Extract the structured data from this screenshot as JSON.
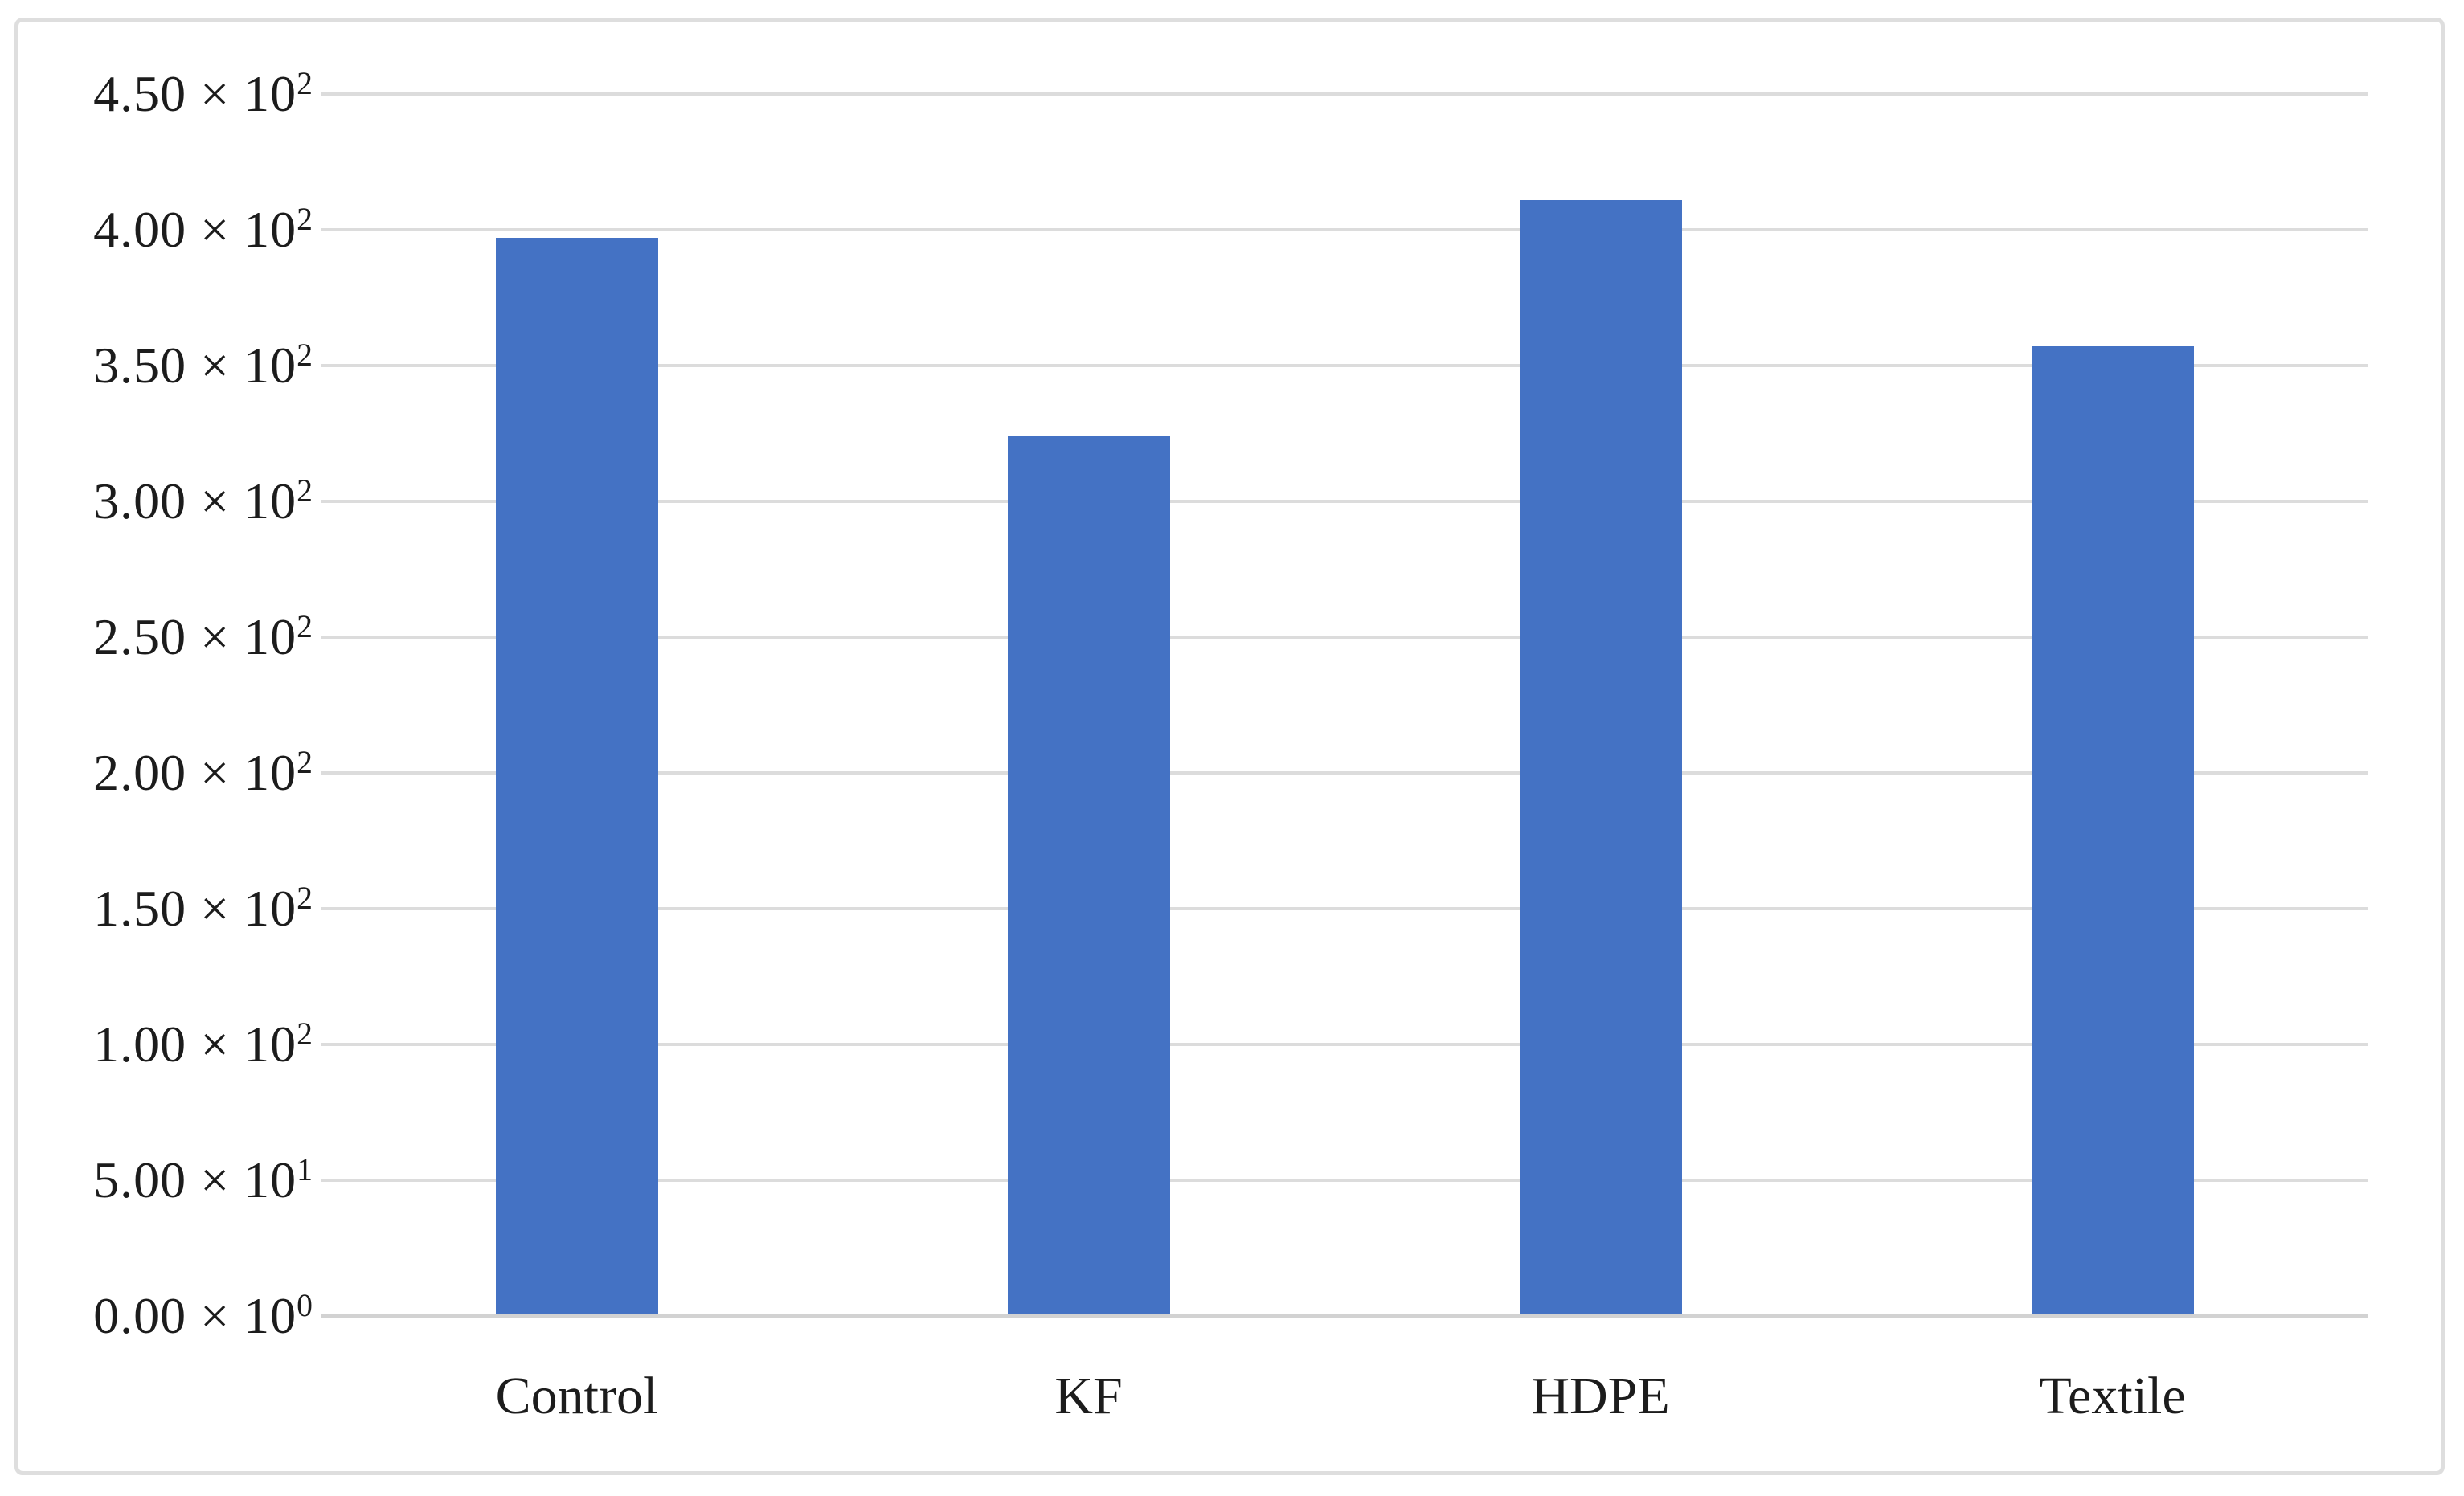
{
  "figure": {
    "background": "#ffffff",
    "border_color": "#dedede"
  },
  "chart_data": {
    "type": "bar",
    "title": "",
    "xlabel": "",
    "ylabel": "",
    "categories": [
      "Control",
      "KF",
      "HDPE",
      "Textile"
    ],
    "values": [
      397,
      324,
      411,
      357
    ],
    "ylim": [
      0,
      450
    ],
    "ytick_step": 50,
    "yticks": [
      {
        "value": 450,
        "base": "4.50 × 10",
        "exp": "2"
      },
      {
        "value": 400,
        "base": "4.00 × 10",
        "exp": "2"
      },
      {
        "value": 350,
        "base": "3.50 × 10",
        "exp": "2"
      },
      {
        "value": 300,
        "base": "3.00 × 10",
        "exp": "2"
      },
      {
        "value": 250,
        "base": "2.50 × 10",
        "exp": "2"
      },
      {
        "value": 200,
        "base": "2.00 × 10",
        "exp": "2"
      },
      {
        "value": 150,
        "base": "1.50 × 10",
        "exp": "2"
      },
      {
        "value": 100,
        "base": "1.00 × 10",
        "exp": "2"
      },
      {
        "value": 50,
        "base": "5.00 × 10",
        "exp": "1"
      },
      {
        "value": 0,
        "base": "0.00 × 10",
        "exp": "0"
      }
    ],
    "bar_color": "#4472C4",
    "gridline_color": "#dcdcdc",
    "axis_line_color": "#d2d2d2",
    "grid": "horizontal",
    "legend_position": "none"
  }
}
